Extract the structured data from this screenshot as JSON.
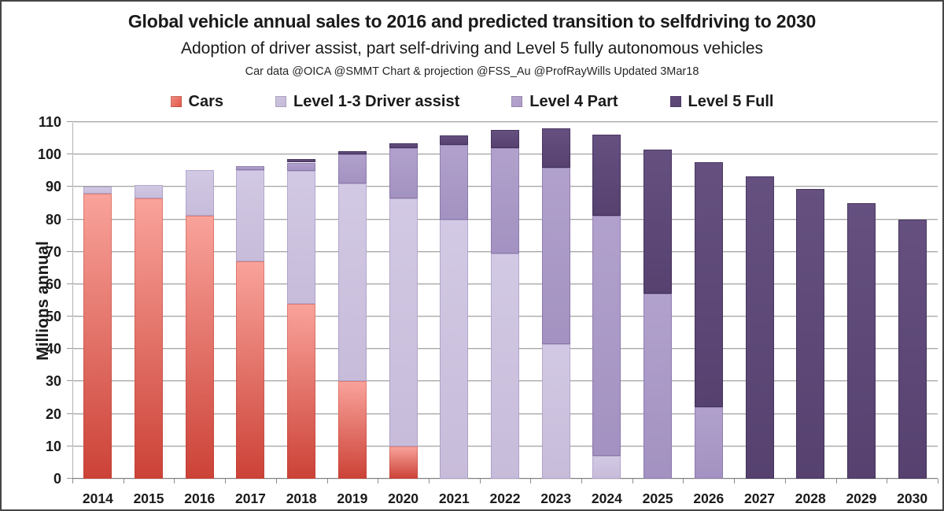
{
  "chart_data": {
    "type": "bar",
    "stacked": true,
    "title": "Global vehicle annual sales to 2016 and predicted transition to selfdriving to 2030",
    "subtitle": "Adoption of driver assist, part self-driving and Level 5 fully autonomous vehicles",
    "credit": "Car data @OICA @SMMT  Chart & projection @FSS_Au  @ProfRayWills Updated 3Mar18",
    "ylabel": "Millions annual",
    "ylim": [
      0,
      110
    ],
    "yticks": [
      0,
      10,
      20,
      30,
      40,
      50,
      60,
      70,
      80,
      90,
      100,
      110
    ],
    "grid": true,
    "legend_position": "top",
    "categories": [
      "2014",
      "2015",
      "2016",
      "2017",
      "2018",
      "2019",
      "2020",
      "2021",
      "2022",
      "2023",
      "2024",
      "2025",
      "2026",
      "2027",
      "2028",
      "2029",
      "2030"
    ],
    "series": [
      {
        "id": "cars",
        "name": "Cars",
        "color_top": "#F9A39B",
        "color_bottom": "#CC4237",
        "swatch_top": "#F18D82",
        "swatch_bottom": "#E25546",
        "edge": "rgba(175,55,42,0.35)",
        "values": [
          88,
          86.5,
          81,
          67,
          54,
          30,
          10,
          0,
          0,
          0,
          0,
          0,
          0,
          0,
          0,
          0,
          0
        ]
      },
      {
        "id": "level-1-3",
        "name": "Level 1-3 Driver assist",
        "color_top": "#D2C9E4",
        "color_bottom": "#C7BCDA",
        "swatch_top": "#CDC4E0",
        "swatch_bottom": "#C6BBD9",
        "edge": "rgba(115,95,155,0.30)",
        "values": [
          2,
          4,
          14.3,
          28.3,
          41,
          61,
          76.5,
          80,
          69.5,
          41.5,
          7,
          0,
          0,
          0,
          0,
          0,
          0
        ]
      },
      {
        "id": "level-4",
        "name": "Level 4 Part",
        "color_top": "#B1A1CC",
        "color_bottom": "#A392C1",
        "swatch_top": "#B5A6CE",
        "swatch_bottom": "#AC9BC8",
        "edge": "rgba(92,72,132,0.35)",
        "values": [
          0,
          0,
          0,
          1,
          2.5,
          9,
          15.5,
          23,
          32.5,
          54.5,
          74,
          57,
          22,
          0,
          0,
          0,
          0
        ]
      },
      {
        "id": "level-5",
        "name": "Level 5 Full",
        "color_top": "#655080",
        "color_bottom": "#56416F",
        "swatch_top": "#604B7C",
        "swatch_bottom": "#594473",
        "edge": "rgba(42,28,62,0.45)",
        "values": [
          0,
          0,
          0,
          0,
          1,
          1,
          1.5,
          2.8,
          5.5,
          12,
          25,
          44.5,
          75.5,
          93.3,
          89.3,
          85,
          80
        ]
      }
    ]
  }
}
